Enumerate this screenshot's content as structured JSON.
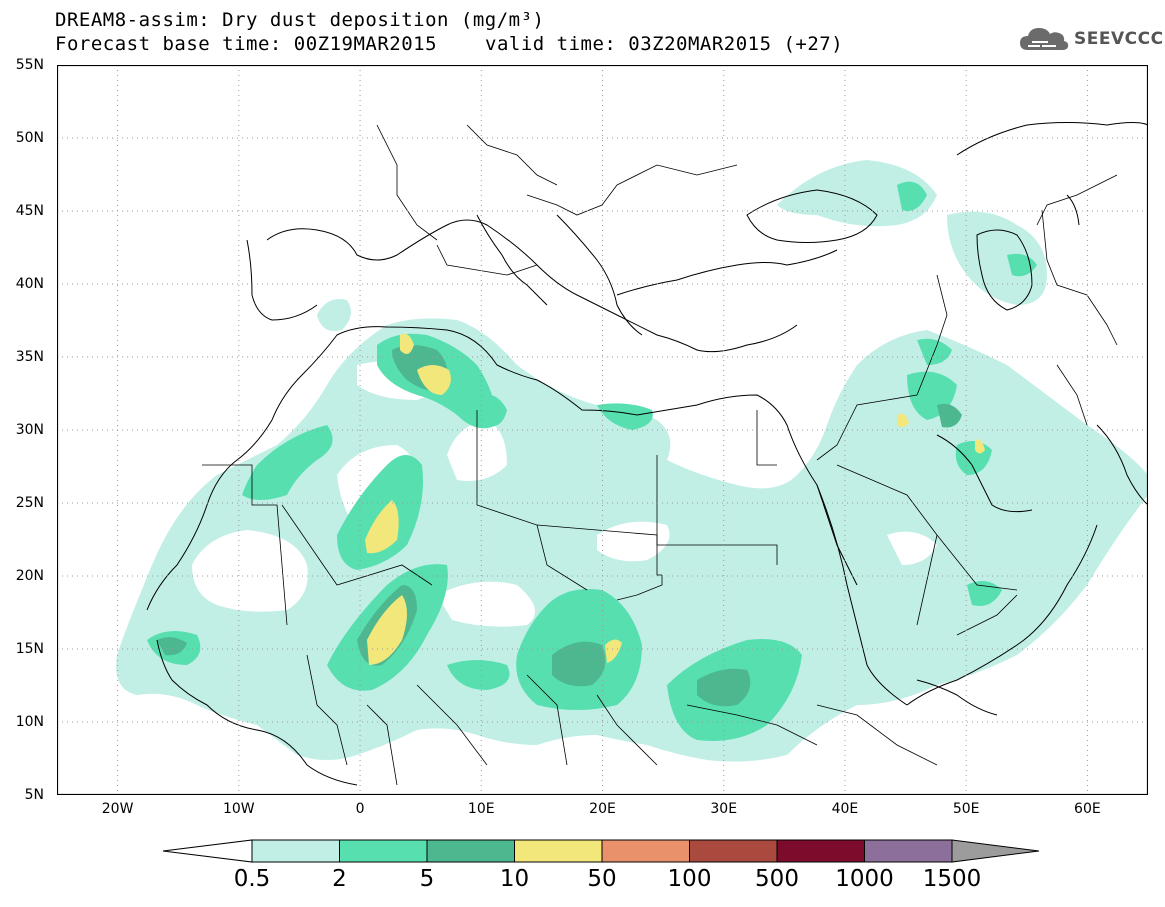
{
  "header": {
    "title_line1": "DREAM8-assim: Dry dust deposition (mg/m³)",
    "base_time": "Forecast base time: 00Z19MAR2015",
    "valid_time": "valid time: 03Z20MAR2015 (+27)"
  },
  "logo": {
    "text": "SEEVCCC",
    "icon": "cloud-icon"
  },
  "map": {
    "lat_ticks": [
      "55N",
      "50N",
      "45N",
      "40N",
      "35N",
      "30N",
      "25N",
      "20N",
      "15N",
      "10N",
      "5N"
    ],
    "lon_ticks": [
      "20W",
      "10W",
      "0",
      "10E",
      "20E",
      "30E",
      "40E",
      "50E",
      "60E"
    ],
    "lat_range": [
      5,
      55
    ],
    "lon_range": [
      -25,
      65
    ],
    "grid": "dotted"
  },
  "legend": {
    "labels": [
      "0.5",
      "2",
      "5",
      "10",
      "50",
      "100",
      "500",
      "1000",
      "1500"
    ],
    "colors": [
      "#c1efe6",
      "#57dfb0",
      "#4db890",
      "#f2e77b",
      "#e8916a",
      "#aa4a3e",
      "#7c0b2c",
      "#8c6f9a"
    ],
    "under_color": "#ffffff",
    "over_color": "#9c9c9c"
  },
  "colors": {
    "coast": "#000000",
    "border": "#000000"
  }
}
